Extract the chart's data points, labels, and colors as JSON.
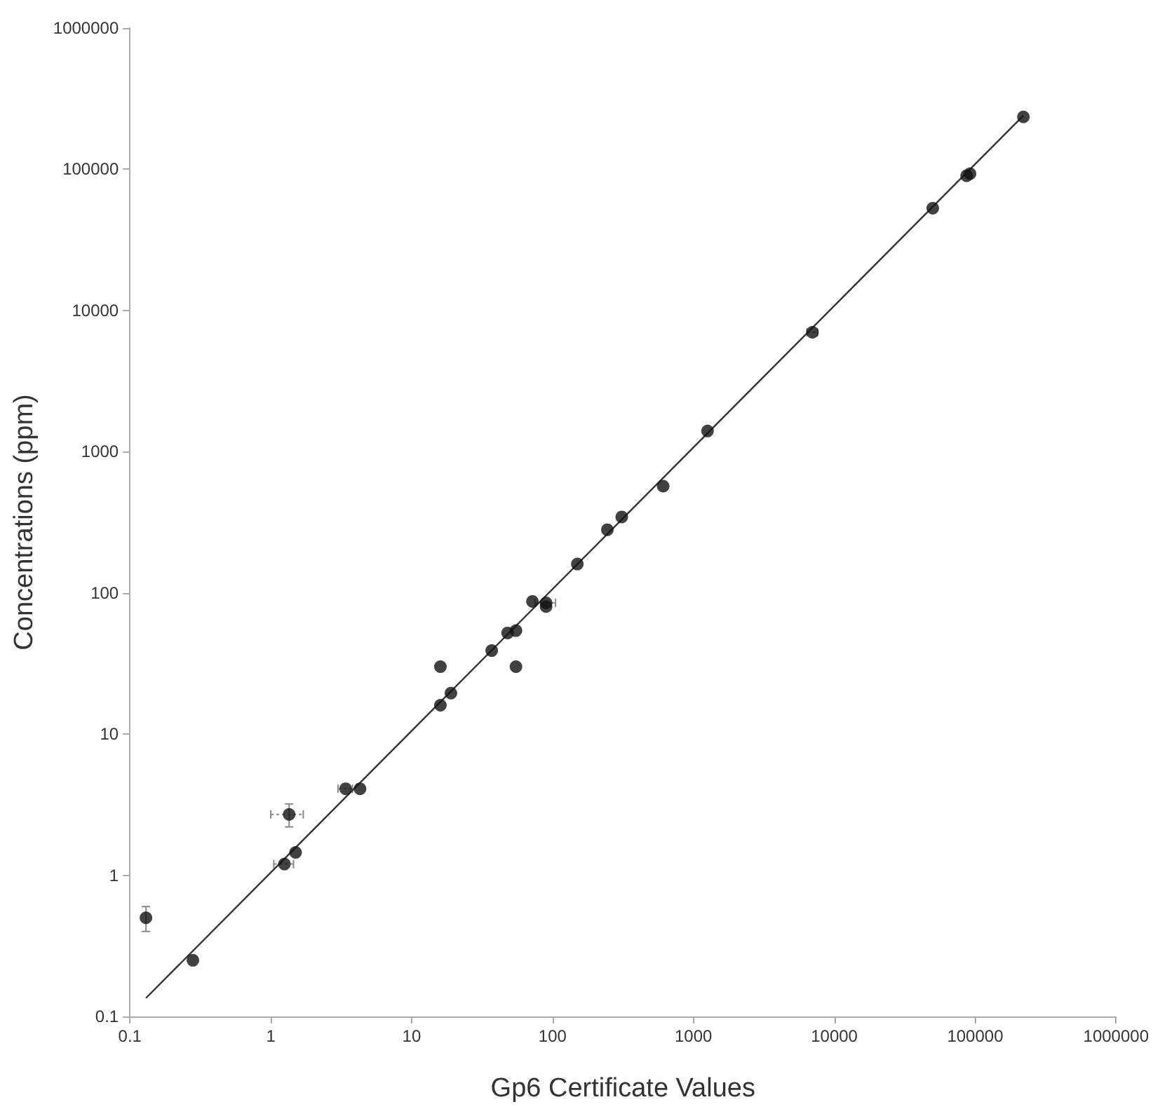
{
  "chart_data": {
    "type": "scatter",
    "xlabel": "Gp6 Certificate Values",
    "ylabel": "Concentrations (ppm)",
    "log": "xy",
    "marker": "circle",
    "xlim": [
      0.1,
      1000000
    ],
    "ylim": [
      0.1,
      1000000
    ],
    "xticks": [
      0.1,
      1,
      10,
      100,
      1000,
      10000,
      100000,
      1000000
    ],
    "yticks": [
      0.1,
      1,
      10,
      100,
      1000,
      10000,
      100000,
      1000000
    ],
    "series": [
      {
        "type": "scatter",
        "color": "#111111",
        "x": [
          0.13,
          0.28,
          1.25,
          1.35,
          1.5,
          3.4,
          4.3,
          16,
          16,
          19,
          37,
          48,
          55,
          55,
          72,
          90,
          90,
          150,
          245,
          310,
          610,
          1260,
          7000,
          50000,
          87000,
          92000,
          220000
        ],
        "values": [
          0.5,
          0.25,
          1.2,
          2.7,
          1.45,
          4.1,
          4.1,
          30,
          16,
          19.5,
          39,
          52,
          54,
          30,
          87,
          85,
          80,
          160,
          280,
          345,
          570,
          1400,
          7000,
          53000,
          90000,
          93000,
          235000
        ],
        "errors": [
          0.1,
          null,
          null,
          0.5,
          null,
          null,
          null,
          null,
          null,
          null,
          null,
          null,
          null,
          null,
          null,
          null,
          null,
          null,
          null,
          null,
          null,
          null,
          null,
          null,
          null,
          null,
          null
        ],
        "xerrors": [
          null,
          null,
          0.2,
          0.35,
          null,
          0.4,
          null,
          null,
          null,
          null,
          null,
          null,
          null,
          null,
          null,
          15,
          null,
          null,
          null,
          null,
          null,
          null,
          600,
          null,
          null,
          null,
          null
        ]
      },
      {
        "type": "line",
        "color": "#333333",
        "marker": "none",
        "x": [
          0.13,
          220000
        ],
        "values": [
          0.135,
          240000
        ]
      }
    ]
  }
}
